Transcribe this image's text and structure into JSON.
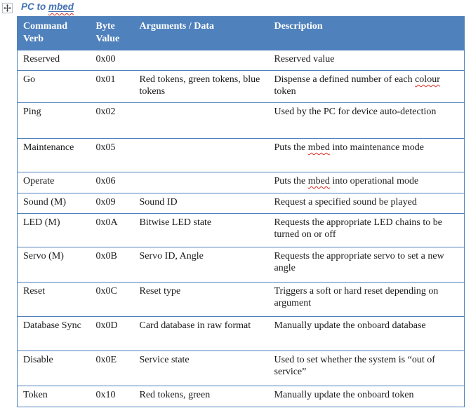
{
  "title": {
    "segments": [
      {
        "t": "PC to "
      },
      {
        "t": "mbed",
        "underline": true,
        "wavy": true
      }
    ]
  },
  "icons": {
    "move_handle": "table-move-handle-icon"
  },
  "colors": {
    "header_bg": "#4f81bd",
    "border": "#4f81bd",
    "title": "#4472b4",
    "text": "#1a1a1a",
    "header_text": "#ffffff",
    "squiggle": "#e02b20"
  },
  "table": {
    "headers": [
      "Command Verb",
      "Byte Value",
      "Arguments / Data",
      "Description"
    ],
    "rows": [
      {
        "verb": "Reserved",
        "byte": "0x00",
        "args": "",
        "desc": [
          {
            "t": "Reserved value"
          }
        ]
      },
      {
        "verb": "Go",
        "byte": "0x01",
        "args": "Red tokens, green tokens, blue tokens",
        "desc": [
          {
            "t": "Dispense a defined number of each "
          },
          {
            "t": "colour",
            "wavy": true
          },
          {
            "t": " token"
          }
        ]
      },
      {
        "verb": "Ping",
        "byte": "0x02",
        "args": "",
        "desc": [
          {
            "t": "Used by the PC for device auto-detection"
          }
        ]
      },
      {
        "verb": "Maintenance",
        "byte": "0x05",
        "args": "",
        "desc": [
          {
            "t": "Puts the "
          },
          {
            "t": "mbed",
            "wavy": true
          },
          {
            "t": " into maintenance mode"
          }
        ]
      },
      {
        "verb": "Operate",
        "byte": "0x06",
        "args": "",
        "desc": [
          {
            "t": "Puts the "
          },
          {
            "t": "mbed",
            "wavy": true
          },
          {
            "t": " into operational mode"
          }
        ]
      },
      {
        "verb": "Sound (M)",
        "byte": "0x09",
        "args": "Sound ID",
        "desc": [
          {
            "t": "Request a specified sound be played"
          }
        ]
      },
      {
        "verb": "LED (M)",
        "byte": "0x0A",
        "args": "Bitwise LED state",
        "desc": [
          {
            "t": "Requests the appropriate LED chains to be turned on or off"
          }
        ]
      },
      {
        "verb": "Servo (M)",
        "byte": "0x0B",
        "args": "Servo ID, Angle",
        "desc": [
          {
            "t": "Requests the appropriate servo to set a new angle"
          }
        ]
      },
      {
        "verb": "Reset",
        "byte": "0x0C",
        "args": "Reset type",
        "desc": [
          {
            "t": "Triggers a soft or hard reset depending on argument"
          }
        ]
      },
      {
        "verb": "Database Sync",
        "byte": "0x0D",
        "args": "Card database in raw format",
        "desc": [
          {
            "t": "Manually update the onboard database"
          }
        ]
      },
      {
        "verb": "Disable",
        "byte": "0x0E",
        "args": "Service state",
        "desc": [
          {
            "t": "Used to set whether the system is “out of service”"
          }
        ]
      },
      {
        "verb": "Token",
        "byte": "0x10",
        "args": "Red tokens, green",
        "desc": [
          {
            "t": "Manually update the onboard token"
          }
        ]
      }
    ]
  }
}
